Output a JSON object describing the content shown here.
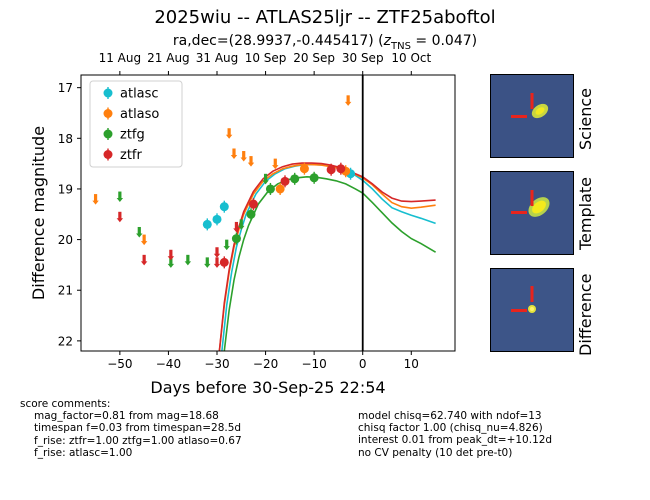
{
  "title": "2025wiu -- ATLAS25ljr -- ZTF25aboftol",
  "subtitle": {
    "prefix": "ra,dec=(28.9937,-0.445417) (",
    "z_symbol": "z",
    "z_sub": "TNS",
    "suffix": " = 0.047)"
  },
  "chart_data": {
    "type": "scatter",
    "xlabel": "Days before 30-Sep-25 22:54",
    "ylabel": "Difference magnitude",
    "xlim": [
      -58,
      19
    ],
    "ylim": [
      22.2,
      16.75
    ],
    "y_inverted": true,
    "x_ticks": [
      -50,
      -40,
      -30,
      -20,
      -10,
      0,
      10
    ],
    "y_ticks": [
      17,
      18,
      19,
      20,
      21,
      22
    ],
    "top_axis_ticks": [
      {
        "x": -50,
        "label": "11 Aug"
      },
      {
        "x": -40,
        "label": "21 Aug"
      },
      {
        "x": -30,
        "label": "31 Aug"
      },
      {
        "x": -20,
        "label": "10 Sep"
      },
      {
        "x": -10,
        "label": "20 Sep"
      },
      {
        "x": 0,
        "label": "30 Sep"
      },
      {
        "x": 10,
        "label": "10 Oct"
      }
    ],
    "reference_line_x": 0,
    "legend_position": "top-left",
    "legend": [
      "atlasc",
      "atlaso",
      "ztfg",
      "ztfr"
    ],
    "colors": {
      "atlasc": "#17becf",
      "atlaso": "#ff7f0e",
      "ztfg": "#2ca02c",
      "ztfr": "#d62728"
    },
    "detections": [
      {
        "band": "atlasc",
        "x": -32,
        "y": 19.7
      },
      {
        "band": "atlasc",
        "x": -30,
        "y": 19.6
      },
      {
        "band": "atlasc",
        "x": -28.5,
        "y": 19.35
      },
      {
        "band": "atlasc",
        "x": -2.5,
        "y": 18.7
      },
      {
        "band": "atlaso",
        "x": -17,
        "y": 19.0
      },
      {
        "band": "atlaso",
        "x": -12,
        "y": 18.6
      },
      {
        "band": "atlaso",
        "x": -3.5,
        "y": 18.65
      },
      {
        "band": "ztfg",
        "x": -26,
        "y": 19.98
      },
      {
        "band": "ztfg",
        "x": -23,
        "y": 19.5
      },
      {
        "band": "ztfg",
        "x": -19,
        "y": 19.0
      },
      {
        "band": "ztfg",
        "x": -14,
        "y": 18.8
      },
      {
        "band": "ztfg",
        "x": -10,
        "y": 18.78
      },
      {
        "band": "ztfr",
        "x": -28.5,
        "y": 20.45
      },
      {
        "band": "ztfr",
        "x": -22.5,
        "y": 19.3
      },
      {
        "band": "ztfr",
        "x": -16,
        "y": 18.85
      },
      {
        "band": "ztfr",
        "x": -6.5,
        "y": 18.62
      },
      {
        "band": "ztfr",
        "x": -4.5,
        "y": 18.6
      }
    ],
    "upper_limits": [
      {
        "band": "atlaso",
        "x": -55,
        "y": 19.2
      },
      {
        "band": "atlaso",
        "x": -45,
        "y": 20.0
      },
      {
        "band": "atlaso",
        "x": -27.5,
        "y": 17.9
      },
      {
        "band": "atlaso",
        "x": -26.5,
        "y": 18.3
      },
      {
        "band": "atlaso",
        "x": -24.5,
        "y": 18.35
      },
      {
        "band": "atlaso",
        "x": -23,
        "y": 18.45
      },
      {
        "band": "atlaso",
        "x": -18,
        "y": 18.5
      },
      {
        "band": "atlaso",
        "x": -3,
        "y": 17.25
      },
      {
        "band": "ztfg",
        "x": -50,
        "y": 19.15
      },
      {
        "band": "ztfg",
        "x": -46,
        "y": 19.85
      },
      {
        "band": "ztfg",
        "x": -39.5,
        "y": 20.45
      },
      {
        "band": "ztfg",
        "x": -36,
        "y": 20.4
      },
      {
        "band": "ztfg",
        "x": -32,
        "y": 20.45
      },
      {
        "band": "ztfg",
        "x": -28,
        "y": 20.1
      },
      {
        "band": "ztfg",
        "x": -25,
        "y": 19.7
      },
      {
        "band": "ztfg",
        "x": -20,
        "y": 18.8
      },
      {
        "band": "ztfr",
        "x": -50,
        "y": 19.55
      },
      {
        "band": "ztfr",
        "x": -45,
        "y": 20.4
      },
      {
        "band": "ztfr",
        "x": -39.5,
        "y": 20.3
      },
      {
        "band": "ztfr",
        "x": -30,
        "y": 20.25
      },
      {
        "band": "ztfr",
        "x": -30,
        "y": 20.45
      },
      {
        "band": "ztfr",
        "x": -26,
        "y": 19.75
      }
    ],
    "model_curves": [
      {
        "band": "atlasc",
        "x": [
          -29,
          -28,
          -27,
          -26,
          -25,
          -24,
          -22,
          -20,
          -18,
          -16,
          -14,
          -12,
          -10,
          -8,
          -6,
          -4,
          -2,
          0,
          2,
          4,
          6,
          8,
          10,
          12,
          15
        ],
        "y": [
          22.2,
          21.3,
          20.65,
          20.15,
          19.8,
          19.5,
          19.1,
          18.85,
          18.7,
          18.6,
          18.55,
          18.52,
          18.52,
          18.53,
          18.56,
          18.6,
          18.7,
          18.83,
          19.0,
          19.2,
          19.37,
          19.45,
          19.52,
          19.58,
          19.68
        ]
      },
      {
        "band": "atlaso",
        "x": [
          -29.5,
          -28.5,
          -27.5,
          -26.5,
          -25.5,
          -24.5,
          -22.5,
          -20.5,
          -18.5,
          -16.5,
          -14.5,
          -12.5,
          -10.5,
          -8.5,
          -6.5,
          -4.5,
          -2.5,
          0,
          2,
          4,
          6,
          8,
          10,
          12,
          15
        ],
        "y": [
          22.2,
          21.3,
          20.65,
          20.15,
          19.8,
          19.5,
          19.1,
          18.85,
          18.7,
          18.6,
          18.55,
          18.52,
          18.52,
          18.53,
          18.56,
          18.6,
          18.67,
          18.78,
          18.92,
          19.1,
          19.27,
          19.35,
          19.38,
          19.36,
          19.32
        ]
      },
      {
        "band": "ztfg",
        "x": [
          -28.5,
          -27.5,
          -26.5,
          -25.5,
          -24.5,
          -23.5,
          -21.5,
          -19.5,
          -17.5,
          -15.5,
          -13.5,
          -11.5,
          -9.5,
          -7.5,
          -5.5,
          -3.5,
          -1.5,
          0,
          2,
          4,
          6,
          8,
          10,
          12,
          15
        ],
        "y": [
          22.2,
          21.4,
          20.8,
          20.35,
          20.0,
          19.72,
          19.3,
          19.05,
          18.9,
          18.82,
          18.78,
          18.76,
          18.77,
          18.8,
          18.84,
          18.9,
          19.0,
          19.08,
          19.27,
          19.47,
          19.67,
          19.84,
          19.98,
          20.08,
          20.25
        ]
      },
      {
        "band": "ztfr",
        "x": [
          -29.5,
          -28.5,
          -27.5,
          -26.5,
          -25.5,
          -24.5,
          -22.5,
          -20.5,
          -18.5,
          -16.5,
          -14.5,
          -12.5,
          -10.5,
          -8.5,
          -6.5,
          -4.5,
          -2.5,
          0,
          2,
          4,
          6,
          8,
          10,
          12,
          15
        ],
        "y": [
          22.2,
          21.25,
          20.6,
          20.1,
          19.75,
          19.45,
          19.05,
          18.8,
          18.65,
          18.56,
          18.51,
          18.49,
          18.49,
          18.5,
          18.53,
          18.58,
          18.66,
          18.76,
          18.9,
          19.06,
          19.18,
          19.24,
          19.25,
          19.24,
          19.22
        ]
      }
    ]
  },
  "stamps": [
    {
      "label": "Science"
    },
    {
      "label": "Template"
    },
    {
      "label": "Difference"
    }
  ],
  "comments_left": {
    "heading": "score comments:",
    "lines": [
      "mag_factor=0.81 from mag=18.68",
      "timespan f=0.03 from timespan=28.5d",
      "f_rise: ztfr=1.00 ztfg=1.00 atlaso=0.67",
      "f_rise: atlasc=1.00"
    ]
  },
  "comments_right": {
    "lines": [
      "model chisq=62.740 with ndof=13",
      "chisq factor 1.00 (chisq_nu=4.826)",
      "interest 0.01 from peak_dt=+10.12d",
      "no CV penalty (10 det pre-t0)"
    ]
  }
}
